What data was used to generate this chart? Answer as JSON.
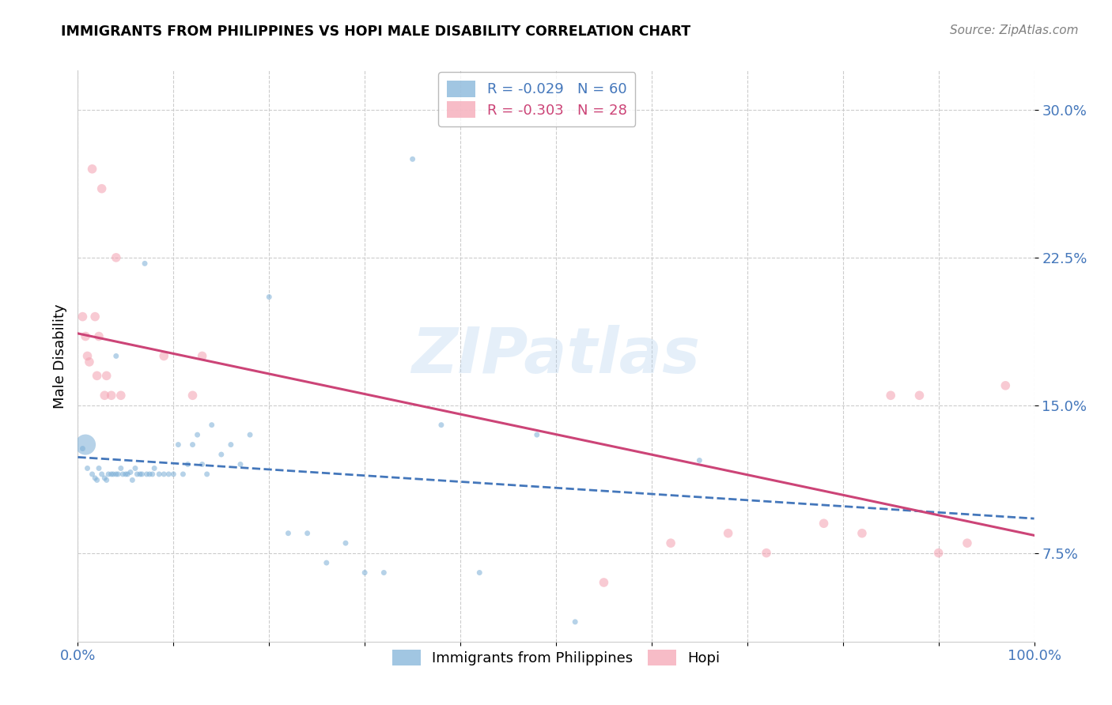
{
  "title": "IMMIGRANTS FROM PHILIPPINES VS HOPI MALE DISABILITY CORRELATION CHART",
  "source": "Source: ZipAtlas.com",
  "ylabel": "Male Disability",
  "xlim": [
    0.0,
    1.0
  ],
  "ylim": [
    0.03,
    0.32
  ],
  "yticks": [
    0.075,
    0.15,
    0.225,
    0.3
  ],
  "ytick_labels": [
    "7.5%",
    "15.0%",
    "22.5%",
    "30.0%"
  ],
  "grid_color": "#cccccc",
  "background_color": "#ffffff",
  "blue_color": "#7aaed6",
  "pink_color": "#f4a0b0",
  "blue_line_color": "#4477bb",
  "pink_line_color": "#cc4477",
  "legend_r_blue": "-0.029",
  "legend_n_blue": "60",
  "legend_r_pink": "-0.303",
  "legend_n_pink": "28",
  "watermark": "ZIPatlas",
  "blue_scatter_x": [
    0.005,
    0.01,
    0.015,
    0.018,
    0.02,
    0.022,
    0.025,
    0.028,
    0.03,
    0.032,
    0.035,
    0.037,
    0.04,
    0.042,
    0.045,
    0.047,
    0.05,
    0.052,
    0.055,
    0.057,
    0.06,
    0.062,
    0.065,
    0.067,
    0.07,
    0.072,
    0.075,
    0.078,
    0.08,
    0.085,
    0.09,
    0.095,
    0.1,
    0.105,
    0.11,
    0.115,
    0.12,
    0.125,
    0.13,
    0.135,
    0.14,
    0.15,
    0.16,
    0.17,
    0.18,
    0.2,
    0.22,
    0.24,
    0.26,
    0.28,
    0.3,
    0.32,
    0.35,
    0.38,
    0.42,
    0.48,
    0.52,
    0.65,
    0.008,
    0.04
  ],
  "blue_scatter_y": [
    0.128,
    0.118,
    0.115,
    0.113,
    0.112,
    0.118,
    0.115,
    0.113,
    0.112,
    0.115,
    0.115,
    0.115,
    0.115,
    0.115,
    0.118,
    0.115,
    0.115,
    0.115,
    0.116,
    0.112,
    0.118,
    0.115,
    0.115,
    0.115,
    0.222,
    0.115,
    0.115,
    0.115,
    0.118,
    0.115,
    0.115,
    0.115,
    0.115,
    0.13,
    0.115,
    0.12,
    0.13,
    0.135,
    0.12,
    0.115,
    0.14,
    0.125,
    0.13,
    0.12,
    0.135,
    0.205,
    0.085,
    0.085,
    0.07,
    0.08,
    0.065,
    0.065,
    0.275,
    0.14,
    0.065,
    0.135,
    0.04,
    0.122,
    0.13,
    0.175
  ],
  "blue_scatter_size": [
    25,
    25,
    25,
    25,
    25,
    25,
    25,
    25,
    25,
    25,
    25,
    25,
    25,
    25,
    25,
    25,
    25,
    25,
    25,
    25,
    25,
    25,
    25,
    25,
    25,
    25,
    25,
    25,
    25,
    25,
    25,
    25,
    25,
    25,
    25,
    25,
    25,
    25,
    25,
    25,
    25,
    25,
    25,
    25,
    25,
    25,
    25,
    25,
    25,
    25,
    25,
    25,
    25,
    25,
    25,
    25,
    25,
    25,
    350,
    25
  ],
  "pink_scatter_x": [
    0.005,
    0.008,
    0.01,
    0.012,
    0.015,
    0.018,
    0.02,
    0.022,
    0.025,
    0.028,
    0.03,
    0.035,
    0.04,
    0.045,
    0.09,
    0.12,
    0.13,
    0.55,
    0.62,
    0.68,
    0.72,
    0.78,
    0.82,
    0.85,
    0.88,
    0.9,
    0.93,
    0.97
  ],
  "pink_scatter_y": [
    0.195,
    0.185,
    0.175,
    0.172,
    0.27,
    0.195,
    0.165,
    0.185,
    0.26,
    0.155,
    0.165,
    0.155,
    0.225,
    0.155,
    0.175,
    0.155,
    0.175,
    0.06,
    0.08,
    0.085,
    0.075,
    0.09,
    0.085,
    0.155,
    0.155,
    0.075,
    0.08,
    0.16
  ]
}
